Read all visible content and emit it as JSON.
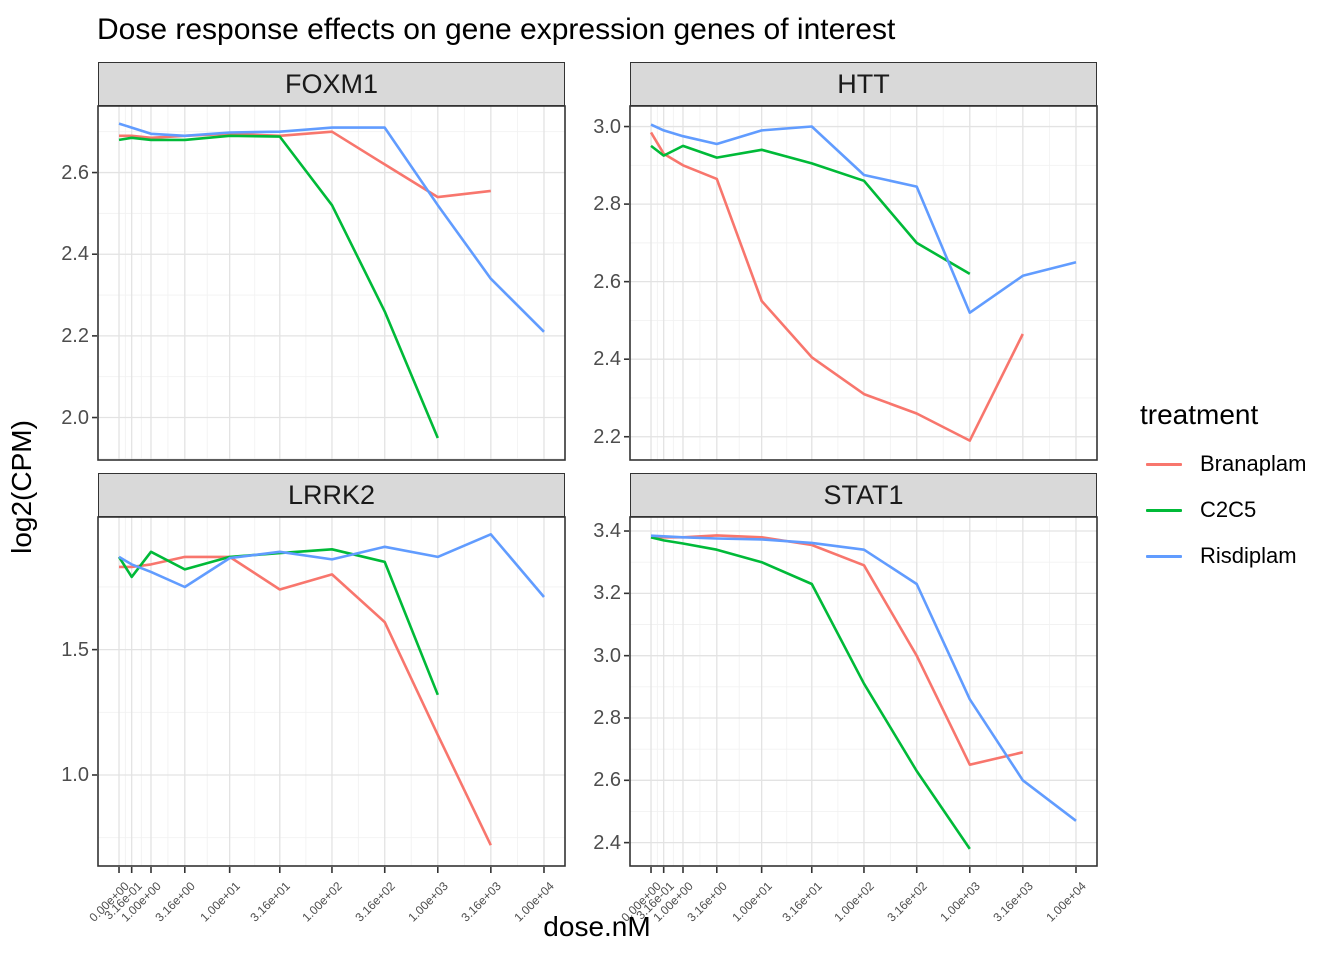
{
  "chart_data": {
    "type": "line",
    "title": "Dose response effects on gene expression genes of interest",
    "xlabel": "dose.nM",
    "ylabel": "log2(CPM)",
    "x_scale": "pseudo-log10(dose+1), range 0 to 10000",
    "x_doses": [
      0,
      0.316,
      1,
      3.16,
      10,
      31.6,
      100,
      316,
      1000,
      3160,
      10000
    ],
    "x_tick_labels": [
      "0.00e+00",
      "3.16e-01",
      "1.00e+00",
      "3.16e+00",
      "1.00e+01",
      "3.16e+01",
      "1.00e+02",
      "3.16e+02",
      "1.00e+03",
      "3.16e+03",
      "1.00e+04"
    ],
    "grid": "major and minor, light gray on white, black panel border",
    "legend": {
      "title": "treatment",
      "position": "right",
      "entries": [
        {
          "name": "Branaplam",
          "color": "#F8766D"
        },
        {
          "name": "C2C5",
          "color": "#00BA38"
        },
        {
          "name": "Risdiplam",
          "color": "#619CFF"
        }
      ]
    },
    "panels": [
      {
        "name": "FOXM1",
        "y_ticks": [
          2.0,
          2.2,
          2.4,
          2.6
        ],
        "y_domain": [
          1.896,
          2.763
        ],
        "series": [
          {
            "name": "Branaplam",
            "values": [
              2.69,
              2.69,
              2.685,
              2.69,
              2.695,
              2.69,
              2.7,
              2.62,
              2.54,
              2.555,
              null
            ]
          },
          {
            "name": "C2C5",
            "values": [
              2.68,
              2.685,
              2.68,
              2.68,
              2.69,
              2.688,
              2.52,
              2.26,
              1.95,
              null,
              null
            ]
          },
          {
            "name": "Risdiplam",
            "values": [
              2.72,
              2.71,
              2.695,
              2.69,
              2.698,
              2.7,
              2.71,
              2.71,
              2.52,
              2.34,
              2.21
            ]
          }
        ]
      },
      {
        "name": "HTT",
        "y_ticks": [
          2.2,
          2.4,
          2.6,
          2.8,
          3.0
        ],
        "y_domain": [
          2.14,
          3.053
        ],
        "series": [
          {
            "name": "Branaplam",
            "values": [
              2.985,
              2.93,
              2.9,
              2.865,
              2.55,
              2.405,
              2.31,
              2.26,
              2.19,
              2.465,
              null
            ]
          },
          {
            "name": "C2C5",
            "values": [
              2.95,
              2.925,
              2.95,
              2.92,
              2.94,
              2.905,
              2.86,
              2.7,
              2.62,
              null,
              null
            ]
          },
          {
            "name": "Risdiplam",
            "values": [
              3.005,
              2.99,
              2.975,
              2.955,
              2.99,
              3.0,
              2.875,
              2.845,
              2.52,
              2.615,
              2.65
            ]
          }
        ]
      },
      {
        "name": "LRRK2",
        "y_ticks": [
          1.0,
          1.5
        ],
        "y_domain": [
          0.637,
          2.029
        ],
        "series": [
          {
            "name": "Branaplam",
            "values": [
              1.83,
              1.83,
              1.84,
              1.87,
              1.87,
              1.74,
              1.8,
              1.61,
              1.16,
              0.72,
              null
            ]
          },
          {
            "name": "C2C5",
            "values": [
              1.87,
              1.79,
              1.89,
              1.82,
              1.87,
              1.885,
              1.9,
              1.85,
              1.32,
              null,
              null
            ]
          },
          {
            "name": "Risdiplam",
            "values": [
              1.87,
              1.84,
              1.81,
              1.75,
              1.865,
              1.89,
              1.86,
              1.91,
              1.87,
              1.96,
              1.71
            ]
          }
        ]
      },
      {
        "name": "STAT1",
        "y_ticks": [
          2.4,
          2.6,
          2.8,
          3.0,
          3.2,
          3.4
        ],
        "y_domain": [
          2.325,
          3.445
        ],
        "series": [
          {
            "name": "Branaplam",
            "values": [
              3.38,
              3.38,
              3.38,
              3.386,
              3.38,
              3.355,
              3.29,
              3.0,
              2.65,
              2.69,
              null
            ]
          },
          {
            "name": "C2C5",
            "values": [
              3.38,
              3.37,
              3.36,
              3.34,
              3.3,
              3.23,
              2.91,
              2.63,
              2.38,
              null,
              null
            ]
          },
          {
            "name": "Risdiplam",
            "values": [
              3.385,
              3.383,
              3.38,
              3.376,
              3.373,
              3.362,
              3.34,
              3.23,
              2.86,
              2.6,
              2.47
            ]
          }
        ]
      }
    ]
  }
}
